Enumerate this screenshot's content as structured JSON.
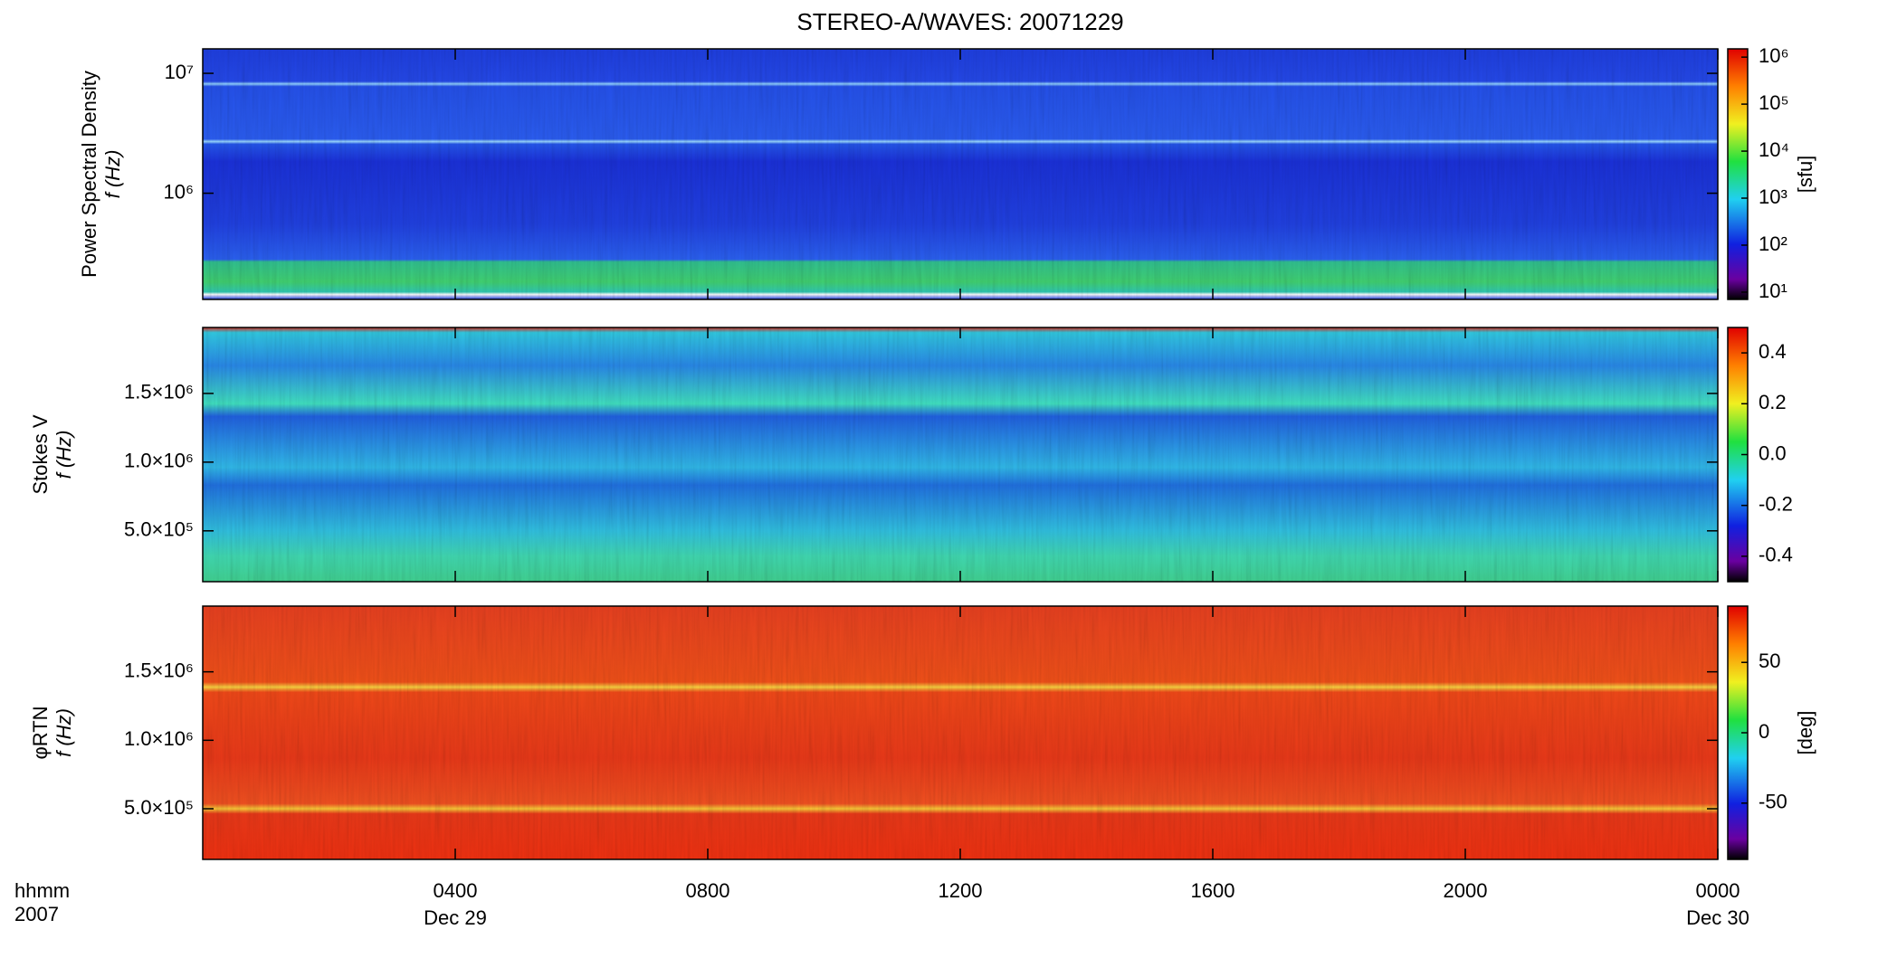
{
  "title": "STEREO-A/WAVES: 20071229",
  "x_axis": {
    "xlim": [
      0,
      24
    ],
    "xticks": [
      {
        "value": 4,
        "label": "0400"
      },
      {
        "value": 8,
        "label": "0800"
      },
      {
        "value": 12,
        "label": "1200"
      },
      {
        "value": 16,
        "label": "1600"
      },
      {
        "value": 20,
        "label": "2000"
      },
      {
        "value": 24,
        "label": "0000"
      }
    ],
    "date_labels": [
      {
        "value": 4,
        "label": "Dec 29"
      },
      {
        "value": 24,
        "label": "Dec 30"
      }
    ],
    "unit_label": "hhmm",
    "year_label": "2007"
  },
  "chart_data": [
    {
      "type": "spectrogram",
      "title": "Power Spectral Density",
      "ylabel": "f (Hz)",
      "log_y": true,
      "ylim": [
        130000,
        16000000
      ],
      "yticks": [
        {
          "value": 1000000,
          "label": "10⁶"
        },
        {
          "value": 10000000,
          "label": "10⁷"
        }
      ],
      "colorbar": {
        "label": "[sfu]",
        "log": true,
        "clim": [
          7,
          1500000
        ],
        "ticks": [
          {
            "value": 10,
            "label": "10¹"
          },
          {
            "value": 100,
            "label": "10²"
          },
          {
            "value": 1000,
            "label": "10³"
          },
          {
            "value": 10000,
            "label": "10⁴"
          },
          {
            "value": 100000,
            "label": "10⁵"
          },
          {
            "value": 1000000,
            "label": "10⁶"
          }
        ]
      }
    },
    {
      "type": "spectrogram",
      "title": "Stokes V",
      "ylabel": "f (Hz)",
      "log_y": false,
      "ylim": [
        130000,
        1980000
      ],
      "yticks": [
        {
          "value": 500000,
          "label": "5.0×10⁵"
        },
        {
          "value": 1000000,
          "label": "1.0×10⁶"
        },
        {
          "value": 1500000,
          "label": "1.5×10⁶"
        }
      ],
      "colorbar": {
        "label": null,
        "log": false,
        "clim": [
          -0.5,
          0.5
        ],
        "ticks": [
          -0.4,
          -0.2,
          {
            "value": 0,
            "label": "0.0"
          },
          0.2,
          0.4
        ]
      }
    },
    {
      "type": "spectrogram",
      "title": "φRTN",
      "ylabel": "f (Hz)",
      "log_y": false,
      "ylim": [
        130000,
        1980000
      ],
      "yticks": [
        {
          "value": 500000,
          "label": "5.0×10⁵"
        },
        {
          "value": 1000000,
          "label": "1.0×10⁶"
        },
        {
          "value": 1500000,
          "label": "1.5×10⁶"
        }
      ],
      "colorbar": {
        "label": "[deg]",
        "log": false,
        "clim": [
          -90,
          90
        ],
        "ticks": [
          -50,
          0,
          50
        ]
      }
    }
  ]
}
